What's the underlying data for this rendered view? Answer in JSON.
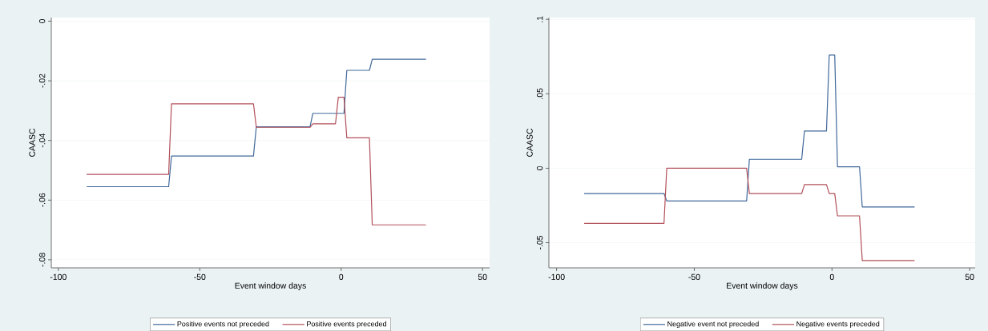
{
  "chart_data": [
    {
      "type": "line",
      "xlabel": "Event window days",
      "ylabel": "CAASC",
      "xlim": [
        -102.5,
        52.5
      ],
      "ylim": [
        -0.0827,
        0.0012
      ],
      "xticks": [
        -100,
        -50,
        0,
        50
      ],
      "yticks": [
        {
          "value": -0.08,
          "label": "-.08"
        },
        {
          "value": -0.06,
          "label": "-.06"
        },
        {
          "value": -0.04,
          "label": "-.04"
        },
        {
          "value": -0.02,
          "label": "-.02"
        },
        0
      ],
      "grid": "y",
      "legend": "bottom",
      "marker": "none",
      "series": [
        {
          "name": "Positive events not preceded",
          "color": "#41699a",
          "x": [
            -90,
            -61,
            -60,
            -31,
            -30,
            -11,
            -10,
            1,
            2,
            10,
            11,
            30
          ],
          "values": [
            -0.0555,
            -0.0555,
            -0.0452,
            -0.0452,
            -0.0354,
            -0.0354,
            -0.0309,
            -0.0309,
            -0.0165,
            -0.0165,
            -0.0128,
            -0.0128
          ]
        },
        {
          "name": "Positive events preceded",
          "color": "#b2505a",
          "x": [
            -90,
            -61,
            -60,
            -31,
            -30,
            -11,
            -10,
            -2,
            -1,
            1,
            2,
            10,
            11,
            30
          ],
          "values": [
            -0.0514,
            -0.0514,
            -0.0277,
            -0.0277,
            -0.0356,
            -0.0356,
            -0.0344,
            -0.0344,
            -0.0255,
            -0.0255,
            -0.0391,
            -0.0391,
            -0.0683,
            -0.0683
          ]
        }
      ]
    },
    {
      "type": "line",
      "xlabel": "Event window days",
      "ylabel": "CAASC",
      "xlim": [
        -102.8,
        52
      ],
      "ylim": [
        -0.0669,
        0.1012
      ],
      "xticks": [
        -100,
        -50,
        0,
        50
      ],
      "yticks": [
        {
          "value": -0.05,
          "label": "-.05"
        },
        0,
        {
          "value": 0.05,
          "label": ".05"
        },
        {
          "value": 0.1,
          "label": ".1"
        }
      ],
      "grid": "y",
      "legend": "bottom",
      "marker": "none",
      "series": [
        {
          "name": "Negative event not preceded",
          "color": "#41699a",
          "x": [
            -90,
            -61,
            -60,
            -31,
            -30,
            -11,
            -10,
            -2,
            -1,
            1,
            2,
            10,
            11,
            30
          ],
          "values": [
            -0.017,
            -0.017,
            -0.022,
            -0.022,
            0.006,
            0.006,
            0.025,
            0.025,
            0.076,
            0.076,
            0.001,
            0.001,
            -0.026,
            -0.026
          ]
        },
        {
          "name": "Negative events preceded",
          "color": "#b2505a",
          "x": [
            -90,
            -61,
            -60,
            -31,
            -30,
            -11,
            -10,
            -2,
            -1,
            1,
            2,
            10,
            11,
            30
          ],
          "values": [
            -0.037,
            -0.037,
            0,
            0,
            -0.017,
            -0.017,
            -0.011,
            -0.011,
            -0.017,
            -0.017,
            -0.032,
            -0.032,
            -0.062,
            -0.062
          ]
        }
      ]
    }
  ]
}
